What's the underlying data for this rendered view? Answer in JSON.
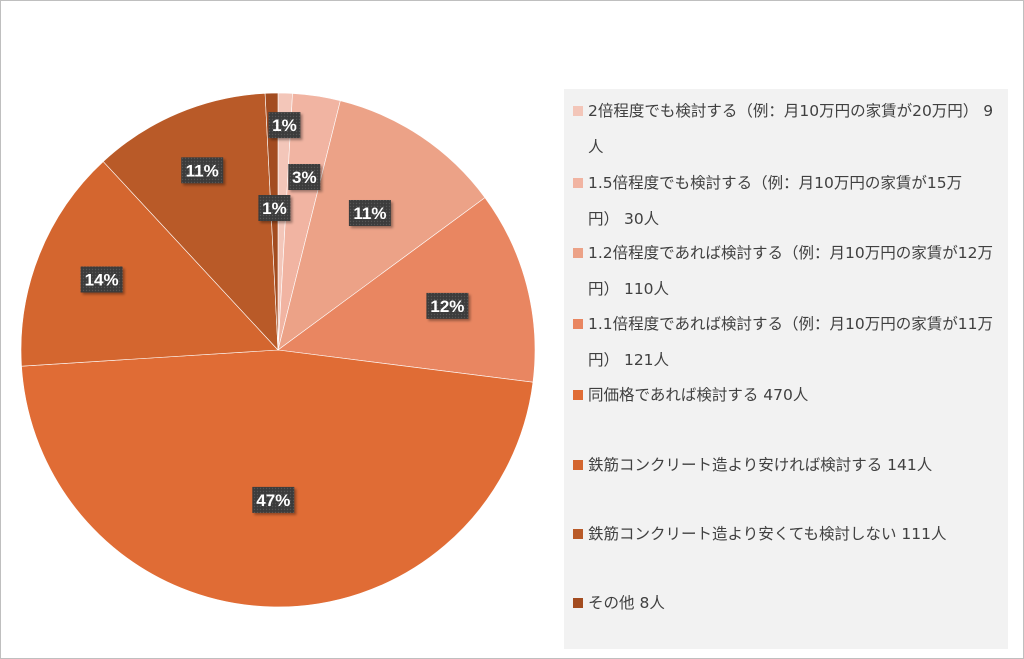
{
  "chart_data": {
    "type": "pie",
    "start_angle_deg": 0,
    "direction": "clockwise",
    "legend_position": "right",
    "slices": [
      {
        "label": "2倍程度でも検討する（例：月10万円の家賃が20万円）",
        "count": "9人",
        "value": 9,
        "percent_label": "1%",
        "color": "#f3c6b9"
      },
      {
        "label": "1.5倍程度でも検討する（例：月10万円の家賃が15万円）",
        "count": "30人",
        "value": 30,
        "percent_label": "3%",
        "color": "#f1b4a2"
      },
      {
        "label": "1.2倍程度であれば検討する（例：月10万円の家賃が12万円）",
        "count": "110人",
        "value": 110,
        "percent_label": "11%",
        "color": "#eca287"
      },
      {
        "label": "1.1倍程度であれば検討する（例：月10万円の家賃が11万円）",
        "count": "121人",
        "value": 121,
        "percent_label": "12%",
        "color": "#e98661"
      },
      {
        "label": "同価格であれば検討する",
        "count": "470人",
        "value": 470,
        "percent_label": "47%",
        "color": "#e06c35"
      },
      {
        "label": "鉄筋コンクリート造より安ければ検討する",
        "count": "141人",
        "value": 141,
        "percent_label": "14%",
        "color": "#d4662f"
      },
      {
        "label": "鉄筋コンクリート造より安くても検討しない",
        "count": "111人",
        "value": 111,
        "percent_label": "11%",
        "color": "#b95a28"
      },
      {
        "label": "その他",
        "count": "8人",
        "value": 8,
        "percent_label": "1%",
        "color": "#a34c20"
      }
    ]
  }
}
